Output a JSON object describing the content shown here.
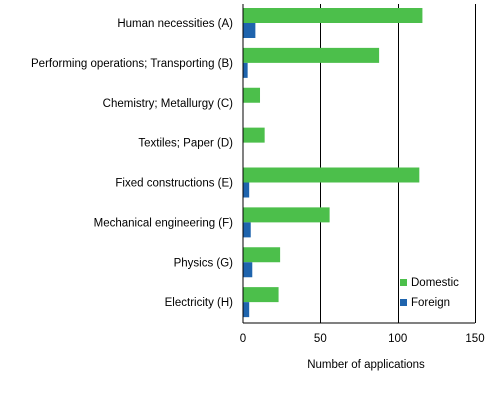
{
  "chart_data": {
    "type": "bar",
    "orientation": "horizontal",
    "categories": [
      "Human necessities (A)",
      "Performing operations; Transporting (B)",
      "Chemistry; Metallurgy  (C)",
      "Textiles; Paper (D)",
      "Fixed constructions (E)",
      "Mechanical engineering (F)",
      "Physics (G)",
      "Electricity (H)"
    ],
    "series": [
      {
        "name": "Domestic",
        "color": "#4cbf4b",
        "values": [
          116,
          88,
          11,
          14,
          114,
          56,
          24,
          23
        ]
      },
      {
        "name": "Foreign",
        "color": "#1f64ad",
        "values": [
          8,
          3,
          0,
          0,
          4,
          5,
          6,
          4
        ]
      }
    ],
    "xlabel": "Number of applications",
    "ylabel": "",
    "xlim": [
      0,
      150
    ],
    "xticks": [
      "0",
      "50",
      "100",
      "150"
    ],
    "grid": "vertical lines at major ticks",
    "legend_position": "bottom-right"
  }
}
